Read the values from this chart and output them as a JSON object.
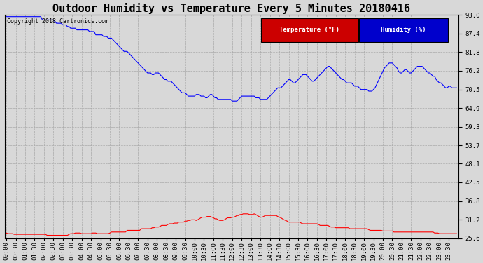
{
  "title": "Outdoor Humidity vs Temperature Every 5 Minutes 20180416",
  "copyright": "Copyright 2018 Cartronics.com",
  "legend_temp": "Temperature (°F)",
  "legend_hum": "Humidity (%)",
  "temp_color": "red",
  "hum_color": "blue",
  "temp_bg": "#cc0000",
  "hum_bg": "#0000cc",
  "ylim_min": 25.6,
  "ylim_max": 93.0,
  "yticks": [
    25.6,
    31.2,
    36.8,
    42.5,
    48.1,
    53.7,
    59.3,
    64.9,
    70.5,
    76.2,
    81.8,
    87.4,
    93.0
  ],
  "background_color": "#d8d8d8",
  "grid_color": "#aaaaaa",
  "title_fontsize": 11,
  "tick_fontsize": 6.5,
  "hum_data": [
    92.5,
    92.5,
    92.5,
    92.5,
    92.5,
    92.5,
    92.5,
    92.5,
    92.5,
    92.5,
    92.5,
    92.5,
    92.5,
    92.5,
    92.5,
    92.5,
    92.5,
    92.5,
    92.5,
    92.5,
    92.5,
    92.5,
    92.5,
    91.5,
    91.5,
    91.5,
    91.5,
    91.5,
    91.5,
    91.5,
    91.5,
    91.0,
    90.5,
    90.5,
    90.5,
    90.5,
    90.0,
    90.0,
    90.0,
    89.5,
    89.5,
    89.0,
    89.0,
    89.0,
    89.0,
    88.5,
    88.5,
    88.5,
    88.5,
    88.5,
    88.5,
    88.5,
    88.5,
    88.0,
    88.0,
    88.0,
    88.0,
    87.0,
    87.0,
    87.0,
    87.0,
    87.0,
    86.5,
    86.5,
    86.5,
    86.0,
    86.0,
    86.0,
    85.5,
    85.0,
    84.5,
    84.0,
    83.5,
    83.0,
    82.5,
    82.0,
    82.0,
    82.0,
    81.5,
    81.0,
    80.5,
    80.0,
    79.5,
    79.0,
    78.5,
    78.0,
    77.5,
    77.0,
    76.5,
    76.0,
    75.5,
    75.5,
    75.5,
    75.0,
    75.0,
    75.5,
    75.5,
    75.5,
    75.0,
    74.5,
    74.0,
    73.5,
    73.5,
    73.0,
    73.0,
    73.0,
    72.5,
    72.0,
    71.5,
    71.0,
    70.5,
    70.0,
    69.5,
    69.5,
    69.5,
    69.0,
    68.5,
    68.5,
    68.5,
    68.5,
    68.5,
    69.0,
    69.0,
    69.0,
    68.5,
    68.5,
    68.5,
    68.0,
    68.0,
    68.5,
    69.0,
    69.0,
    68.5,
    68.0,
    68.0,
    67.5,
    67.5,
    67.5,
    67.5,
    67.5,
    67.5,
    67.5,
    67.5,
    67.5,
    67.0,
    67.0,
    67.0,
    67.0,
    67.5,
    68.0,
    68.5,
    68.5,
    68.5,
    68.5,
    68.5,
    68.5,
    68.5,
    68.5,
    68.5,
    68.0,
    68.0,
    68.0,
    67.5,
    67.5,
    67.5,
    67.5,
    67.5,
    68.0,
    68.5,
    69.0,
    69.5,
    70.0,
    70.5,
    71.0,
    71.0,
    71.0,
    71.5,
    72.0,
    72.5,
    73.0,
    73.5,
    73.5,
    73.0,
    72.5,
    72.5,
    73.0,
    73.5,
    74.0,
    74.5,
    75.0,
    75.0,
    75.0,
    74.5,
    74.0,
    73.5,
    73.0,
    73.0,
    73.5,
    74.0,
    74.5,
    75.0,
    75.5,
    76.0,
    76.5,
    77.0,
    77.5,
    77.5,
    77.0,
    76.5,
    76.0,
    75.5,
    75.0,
    74.5,
    74.0,
    73.5,
    73.5,
    73.0,
    72.5,
    72.5,
    72.5,
    72.5,
    72.0,
    71.5,
    71.5,
    71.5,
    71.0,
    70.5,
    70.5,
    70.5,
    70.5,
    70.5,
    70.0,
    70.0,
    70.0,
    70.5,
    71.0,
    72.0,
    73.0,
    74.0,
    75.0,
    76.0,
    77.0,
    77.5,
    78.0,
    78.5,
    78.5,
    78.5,
    78.0,
    77.5,
    77.0,
    76.0,
    75.5,
    75.5,
    76.0,
    76.5,
    76.5,
    76.0,
    75.5,
    75.5,
    76.0,
    76.5,
    77.0,
    77.5,
    77.5,
    77.5,
    77.5,
    77.0,
    76.5,
    76.0,
    75.5,
    75.5,
    75.0,
    74.5,
    74.5,
    73.5,
    73.0,
    72.5,
    72.5,
    72.0,
    71.5,
    71.0,
    71.0,
    71.5,
    71.5,
    71.0,
    71.0,
    71.0,
    71.0,
    71.5,
    72.0
  ],
  "temp_data": [
    27.2,
    27.0,
    27.0,
    27.0,
    27.0,
    26.8,
    26.8,
    26.8,
    26.8,
    26.8,
    26.8,
    26.8,
    26.8,
    26.8,
    26.8,
    26.8,
    26.8,
    26.8,
    26.8,
    26.8,
    26.8,
    26.8,
    26.8,
    26.8,
    26.8,
    26.8,
    26.5,
    26.5,
    26.5,
    26.5,
    26.5,
    26.5,
    26.5,
    26.5,
    26.5,
    26.5,
    26.5,
    26.5,
    26.5,
    26.5,
    26.8,
    27.0,
    27.0,
    27.0,
    27.2,
    27.2,
    27.2,
    27.2,
    27.0,
    27.0,
    27.0,
    27.0,
    27.0,
    27.0,
    27.0,
    27.2,
    27.2,
    27.2,
    27.0,
    27.0,
    27.0,
    27.0,
    27.0,
    27.0,
    27.0,
    27.0,
    27.2,
    27.5,
    27.5,
    27.5,
    27.5,
    27.5,
    27.5,
    27.5,
    27.5,
    27.5,
    27.5,
    28.0,
    28.0,
    28.0,
    28.0,
    28.0,
    28.0,
    28.0,
    28.0,
    28.0,
    28.5,
    28.5,
    28.5,
    28.5,
    28.5,
    28.5,
    28.5,
    28.8,
    28.8,
    29.0,
    29.0,
    29.0,
    29.2,
    29.5,
    29.5,
    29.5,
    29.5,
    29.8,
    30.0,
    30.0,
    30.0,
    30.2,
    30.2,
    30.2,
    30.5,
    30.5,
    30.5,
    30.5,
    30.8,
    30.8,
    31.0,
    31.0,
    31.2,
    31.2,
    31.2,
    31.0,
    31.2,
    31.5,
    31.8,
    32.0,
    32.0,
    32.0,
    32.2,
    32.2,
    32.2,
    32.0,
    31.8,
    31.5,
    31.5,
    31.2,
    31.0,
    31.0,
    31.0,
    31.2,
    31.5,
    31.8,
    31.8,
    31.8,
    32.0,
    32.0,
    32.2,
    32.5,
    32.5,
    32.8,
    32.8,
    33.0,
    33.0,
    33.0,
    33.0,
    32.8,
    32.8,
    32.8,
    33.0,
    32.8,
    32.5,
    32.2,
    32.0,
    32.0,
    32.2,
    32.5,
    32.5,
    32.5,
    32.5,
    32.5,
    32.5,
    32.5,
    32.5,
    32.2,
    32.0,
    31.8,
    31.5,
    31.2,
    31.0,
    30.8,
    30.5,
    30.5,
    30.5,
    30.5,
    30.5,
    30.5,
    30.5,
    30.5,
    30.2,
    30.0,
    30.0,
    30.0,
    30.0,
    30.0,
    30.0,
    30.0,
    30.0,
    30.0,
    30.0,
    29.8,
    29.5,
    29.5,
    29.5,
    29.5,
    29.5,
    29.5,
    29.2,
    29.0,
    29.0,
    29.0,
    28.8,
    28.8,
    28.8,
    28.8,
    28.8,
    28.8,
    28.8,
    28.8,
    28.8,
    28.5,
    28.5,
    28.5,
    28.5,
    28.5,
    28.5,
    28.5,
    28.5,
    28.5,
    28.5,
    28.5,
    28.5,
    28.2,
    28.0,
    28.0,
    28.0,
    28.0,
    28.0,
    28.0,
    28.0,
    28.0,
    27.8,
    27.8,
    27.8,
    27.8,
    27.8,
    27.8,
    27.8,
    27.5,
    27.5,
    27.5,
    27.5,
    27.5,
    27.5,
    27.5,
    27.5,
    27.5,
    27.5,
    27.5,
    27.5,
    27.5,
    27.5,
    27.5,
    27.5,
    27.5,
    27.5,
    27.5,
    27.5,
    27.5,
    27.5,
    27.5,
    27.5,
    27.5,
    27.5,
    27.2,
    27.2,
    27.2,
    27.0,
    27.0,
    27.0,
    27.0,
    27.0,
    27.0,
    27.0,
    27.0,
    27.0,
    27.0,
    27.0,
    27.0,
    27.0,
    27.0
  ]
}
